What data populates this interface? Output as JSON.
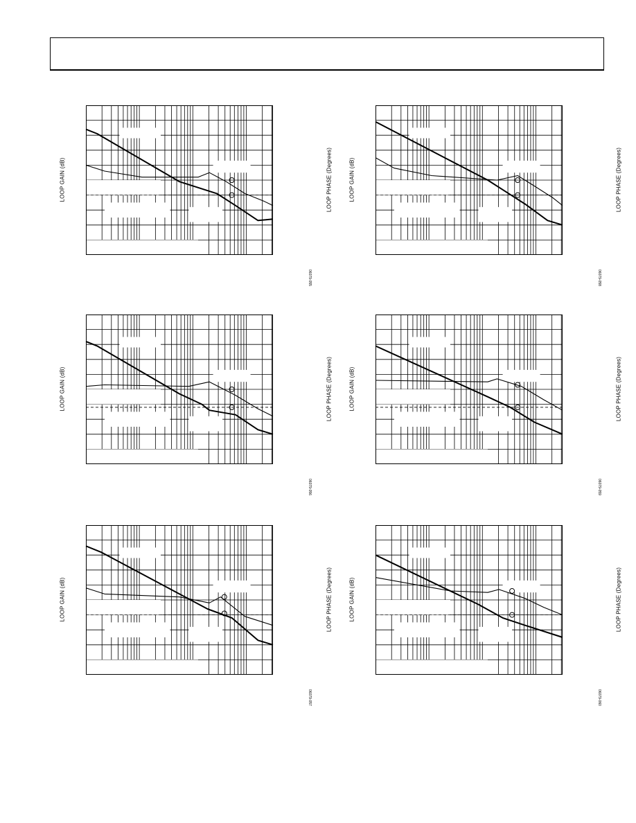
{
  "labels": {
    "left_axis": "LOOP GAIN (dB)",
    "right_axis": "LOOP PHASE (Degrees)"
  },
  "figure_ids": [
    "06079-055",
    "06079-058",
    "06079-056",
    "06079-059",
    "06079-057",
    "06079-060"
  ],
  "chart_data": [
    {
      "type": "line",
      "panel": "top-left",
      "xlabel": "",
      "ylabel": "LOOP GAIN (dB)",
      "y2label": "LOOP PHASE (Degrees)",
      "xscale": "log",
      "xlim": [
        0,
        1
      ],
      "ylim": [
        0,
        1
      ],
      "grid": true,
      "series": [
        {
          "role": "gain",
          "x": [
            0.0,
            0.06,
            0.5,
            0.7,
            0.8,
            0.92,
            1.0
          ],
          "y": [
            0.84,
            0.81,
            0.49,
            0.41,
            0.33,
            0.23,
            0.24
          ]
        },
        {
          "role": "phase",
          "x": [
            0.0,
            0.1,
            0.3,
            0.6,
            0.66,
            0.75,
            0.85,
            0.95,
            1.0
          ],
          "y": [
            0.6,
            0.56,
            0.52,
            0.52,
            0.55,
            0.49,
            0.41,
            0.36,
            0.33
          ]
        }
      ],
      "markers": [
        {
          "x": 0.78,
          "y": 0.5
        },
        {
          "x": 0.78,
          "y": 0.4
        }
      ],
      "reference_line_y": 0.4
    },
    {
      "type": "line",
      "panel": "top-right",
      "xlabel": "",
      "ylabel": "LOOP GAIN (dB)",
      "y2label": "LOOP PHASE (Degrees)",
      "xscale": "log",
      "xlim": [
        0,
        1
      ],
      "ylim": [
        0,
        1
      ],
      "grid": true,
      "series": [
        {
          "role": "gain",
          "x": [
            0.0,
            0.6,
            0.7,
            0.8,
            0.92,
            1.0
          ],
          "y": [
            0.89,
            0.5,
            0.42,
            0.34,
            0.23,
            0.2
          ]
        },
        {
          "role": "phase",
          "x": [
            0.0,
            0.1,
            0.3,
            0.65,
            0.76,
            0.85,
            0.95,
            1.0
          ],
          "y": [
            0.65,
            0.58,
            0.53,
            0.5,
            0.53,
            0.46,
            0.38,
            0.33
          ]
        }
      ],
      "markers": [
        {
          "x": 0.76,
          "y": 0.5
        },
        {
          "x": 0.76,
          "y": 0.4
        }
      ],
      "reference_line_y": 0.4
    },
    {
      "type": "line",
      "panel": "middle-left",
      "xlabel": "",
      "ylabel": "LOOP GAIN (dB)",
      "y2label": "LOOP PHASE (Degrees)",
      "xscale": "log",
      "xlim": [
        0,
        1
      ],
      "ylim": [
        0,
        1
      ],
      "grid": true,
      "series": [
        {
          "role": "gain",
          "x": [
            0.0,
            0.06,
            0.5,
            0.62,
            0.66,
            0.8,
            0.92,
            1.0
          ],
          "y": [
            0.82,
            0.79,
            0.47,
            0.4,
            0.36,
            0.33,
            0.23,
            0.2
          ]
        },
        {
          "role": "phase",
          "x": [
            0.0,
            0.1,
            0.55,
            0.66,
            0.8,
            0.92,
            1.0
          ],
          "y": [
            0.52,
            0.53,
            0.52,
            0.55,
            0.46,
            0.37,
            0.32
          ]
        }
      ],
      "markers": [
        {
          "x": 0.78,
          "y": 0.5
        },
        {
          "x": 0.78,
          "y": 0.38
        }
      ],
      "reference_line_y": 0.38
    },
    {
      "type": "line",
      "panel": "middle-right",
      "xlabel": "",
      "ylabel": "LOOP GAIN (dB)",
      "y2label": "LOOP PHASE (Degrees)",
      "xscale": "log",
      "xlim": [
        0,
        1
      ],
      "ylim": [
        0,
        1
      ],
      "grid": true,
      "series": [
        {
          "role": "gain",
          "x": [
            0.0,
            0.6,
            0.72,
            0.85,
            1.0
          ],
          "y": [
            0.79,
            0.45,
            0.38,
            0.28,
            0.2
          ]
        },
        {
          "role": "phase",
          "x": [
            0.0,
            0.6,
            0.65,
            0.78,
            0.9,
            1.0
          ],
          "y": [
            0.56,
            0.55,
            0.57,
            0.52,
            0.43,
            0.36
          ]
        }
      ],
      "markers": [
        {
          "x": 0.76,
          "y": 0.53
        },
        {
          "x": 0.76,
          "y": 0.38
        }
      ],
      "reference_line_y": 0.38
    },
    {
      "type": "line",
      "panel": "bottom-left",
      "xlabel": "",
      "ylabel": "LOOP GAIN (dB)",
      "y2label": "LOOP PHASE (Degrees)",
      "xscale": "log",
      "xlim": [
        0,
        1
      ],
      "ylim": [
        0,
        1
      ],
      "grid": true,
      "series": [
        {
          "role": "gain",
          "x": [
            0.0,
            0.08,
            0.5,
            0.65,
            0.78,
            0.92,
            1.0
          ],
          "y": [
            0.86,
            0.82,
            0.54,
            0.44,
            0.38,
            0.23,
            0.2
          ]
        },
        {
          "role": "phase",
          "x": [
            0.0,
            0.1,
            0.5,
            0.66,
            0.72,
            0.85,
            1.0
          ],
          "y": [
            0.58,
            0.54,
            0.52,
            0.48,
            0.52,
            0.39,
            0.33
          ]
        }
      ],
      "markers": [
        {
          "x": 0.74,
          "y": 0.52
        },
        {
          "x": 0.74,
          "y": 0.41
        }
      ],
      "reference_line_y": 0.4
    },
    {
      "type": "line",
      "panel": "bottom-right",
      "xlabel": "",
      "ylabel": "LOOP GAIN (dB)",
      "y2label": "LOOP PHASE (Degrees)",
      "xscale": "log",
      "xlim": [
        0,
        1
      ],
      "ylim": [
        0,
        1
      ],
      "grid": true,
      "series": [
        {
          "role": "gain",
          "x": [
            0.0,
            0.55,
            0.68,
            0.8,
            1.0
          ],
          "y": [
            0.8,
            0.47,
            0.38,
            0.33,
            0.25
          ]
        },
        {
          "role": "phase",
          "x": [
            0.0,
            0.4,
            0.6,
            0.66,
            0.8,
            0.9,
            1.0
          ],
          "y": [
            0.65,
            0.56,
            0.55,
            0.57,
            0.51,
            0.45,
            0.4
          ]
        }
      ],
      "markers": [
        {
          "x": 0.73,
          "y": 0.56
        },
        {
          "x": 0.73,
          "y": 0.4
        }
      ],
      "reference_line_y": 0.4
    }
  ]
}
